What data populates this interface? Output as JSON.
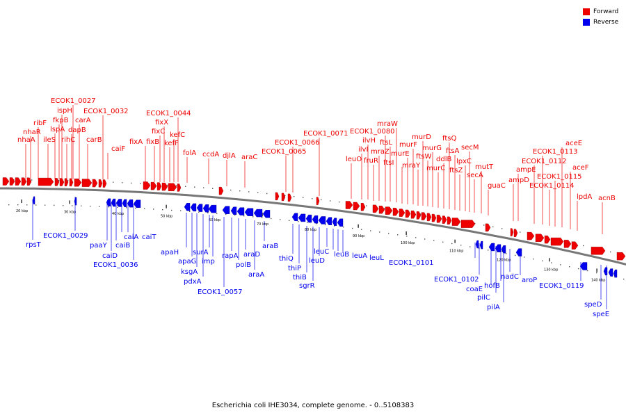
{
  "caption": "Escherichia coli IHE3034, complete genome. - 0..5108383",
  "legend": [
    {
      "label": "Forward",
      "color": "#ee0000"
    },
    {
      "label": "Reverse",
      "color": "#0000ee"
    }
  ],
  "colors": {
    "forward": "#ee0000",
    "reverse": "#0000ee",
    "backbone": "#777777"
  },
  "ticks": [
    {
      "kbp": 20,
      "label": "20 kbp"
    },
    {
      "kbp": 30,
      "label": "30 kbp"
    },
    {
      "kbp": 40,
      "label": "40 kbp"
    },
    {
      "kbp": 50,
      "label": "50 kbp"
    },
    {
      "kbp": 60,
      "label": "60 kbp"
    },
    {
      "kbp": 70,
      "label": "70 kbp"
    },
    {
      "kbp": 80,
      "label": "80 kbp"
    },
    {
      "kbp": 90,
      "label": "90 kbp"
    },
    {
      "kbp": 100,
      "label": "100 kbp"
    },
    {
      "kbp": 110,
      "label": "110 kbp"
    },
    {
      "kbp": 120,
      "label": "120 kbp"
    },
    {
      "kbp": 130,
      "label": "130 kbp"
    },
    {
      "kbp": 140,
      "label": "140 kbp"
    }
  ],
  "forward_genes": [
    "nhaA",
    "nhaR",
    "ribF",
    "ileS",
    "lspA",
    "fkpB",
    "ispH",
    "rihC",
    "dapB",
    "ECOK1_0027",
    "carA",
    "carB",
    "ECOK1_0032",
    "caiF",
    "fixA",
    "fixB",
    "fixC",
    "fixX",
    "kefF",
    "kefC",
    "ECOK1_0044",
    "folA",
    "ccdA",
    "djlA",
    "araC",
    "ECOK1_0065",
    "ECOK1_0066",
    "ECOK1_0071",
    "leuO",
    "ilvI",
    "ilvH",
    "fruR",
    "mraZ",
    "ECOK1_0080",
    "ftsL",
    "mraW",
    "ftsI",
    "murE",
    "murF",
    "mraY",
    "murD",
    "ftsW",
    "murG",
    "murC",
    "ddlB",
    "ftsQ",
    "ftsA",
    "ftsZ",
    "lpxC",
    "secM",
    "secA",
    "mutT",
    "guaC",
    "ampD",
    "ampE",
    "ECOK1_0112",
    "ECOK1_0113",
    "ECOK1_0114",
    "ECOK1_0115",
    "aceE",
    "aceF",
    "lpdA",
    "acnB"
  ],
  "reverse_genes": [
    "rpsT",
    "ECOK1_0029",
    "paaY",
    "caiD",
    "caiB",
    "caiA",
    "caiT",
    "ECOK1_0036",
    "apaH",
    "apaG",
    "ksgA",
    "pdxA",
    "surA",
    "imp",
    "ECOK1_0057",
    "rapA",
    "polB",
    "araD",
    "araA",
    "araB",
    "thiQ",
    "thiP",
    "thiB",
    "sgrR",
    "leuD",
    "leuC",
    "leuB",
    "leuA",
    "leuL",
    "ECOK1_0101",
    "ECOK1_0102",
    "coaE",
    "pilC",
    "hofB",
    "pilA",
    "nadC",
    "aroP",
    "ECOK1_0119",
    "speD",
    "speE"
  ]
}
